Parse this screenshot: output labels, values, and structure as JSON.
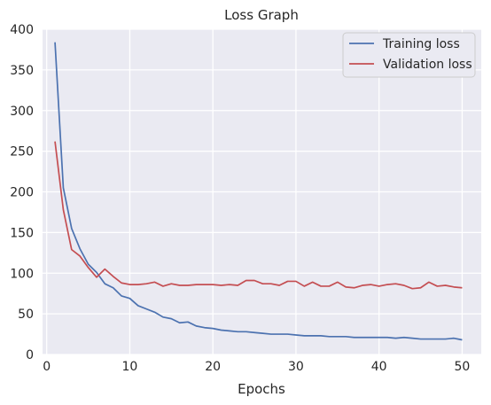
{
  "chart_data": {
    "type": "line",
    "title": "Loss Graph",
    "xlabel": "Epochs",
    "ylabel": "",
    "xlim": [
      -0.5,
      52.3
    ],
    "ylim": [
      0,
      400
    ],
    "xticks": [
      0,
      10,
      20,
      30,
      40,
      50
    ],
    "yticks": [
      0,
      50,
      100,
      150,
      200,
      250,
      300,
      350,
      400
    ],
    "grid": true,
    "legend_position": "top-right",
    "x": [
      1,
      2,
      3,
      4,
      5,
      6,
      7,
      8,
      9,
      10,
      11,
      12,
      13,
      14,
      15,
      16,
      17,
      18,
      19,
      20,
      21,
      22,
      23,
      24,
      25,
      26,
      27,
      28,
      29,
      30,
      31,
      32,
      33,
      34,
      35,
      36,
      37,
      38,
      39,
      40,
      41,
      42,
      43,
      44,
      45,
      46,
      47,
      48,
      49,
      50
    ],
    "series": [
      {
        "name": "Training loss",
        "color": "#4c72b0",
        "values": [
          384,
          205,
          155,
          130,
          111,
          101,
          87,
          82,
          72,
          69,
          60,
          56,
          52,
          46,
          44,
          39,
          40,
          35,
          33,
          32,
          30,
          29,
          28,
          28,
          27,
          26,
          25,
          25,
          25,
          24,
          23,
          23,
          23,
          22,
          22,
          22,
          21,
          21,
          21,
          21,
          21,
          20,
          21,
          20,
          19,
          19,
          19,
          19,
          20,
          18
        ]
      },
      {
        "name": "Validation loss",
        "color": "#c44e52",
        "values": [
          262,
          178,
          129,
          121,
          107,
          95,
          105,
          96,
          88,
          86,
          86,
          87,
          89,
          84,
          87,
          85,
          85,
          86,
          86,
          86,
          85,
          86,
          85,
          91,
          91,
          87,
          87,
          85,
          90,
          90,
          84,
          89,
          84,
          84,
          89,
          83,
          82,
          85,
          86,
          84,
          86,
          87,
          85,
          81,
          82,
          89,
          84,
          85,
          83,
          82
        ]
      }
    ]
  }
}
